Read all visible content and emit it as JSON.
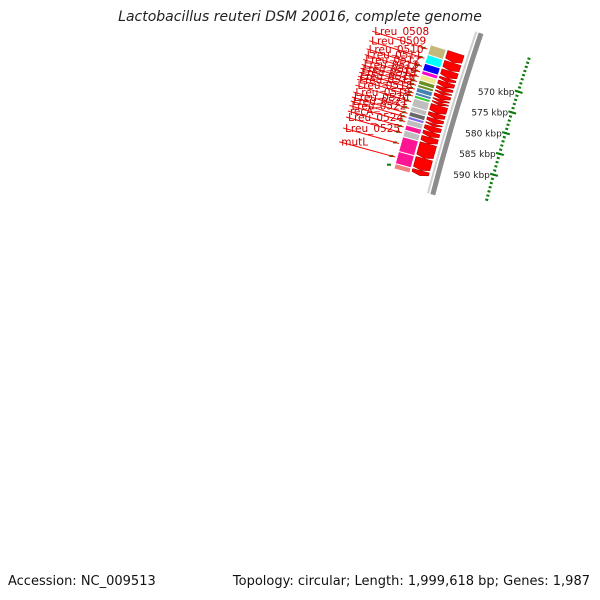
{
  "title": "Lactobacillus reuteri DSM 20016, complete genome",
  "accession_text": "Accession: NC_009513",
  "summary_text": "Topology: circular; Length: 1,999,618 bp; Genes: 1,987",
  "scale_labels": [
    {
      "text": "570 kbp",
      "kbp": 570
    },
    {
      "text": "575 kbp",
      "kbp": 575
    },
    {
      "text": "580 kbp",
      "kbp": 580
    },
    {
      "text": "585 kbp",
      "kbp": 585
    },
    {
      "text": "590 kbp",
      "kbp": 590
    }
  ],
  "colors": {
    "backbone": "#8c8c8c",
    "cds": "#ff0000",
    "label_line": "#ff0000",
    "label_text": "#cc0000",
    "scale_tick": "#0a7a0a"
  },
  "genes": [
    {
      "name": "Lreu_0508",
      "start_kbp": 566.0,
      "end_kbp": 568.2,
      "color": "#c4b87a"
    },
    {
      "name": "Lreu_0509",
      "start_kbp": 568.3,
      "end_kbp": 570.2,
      "color": "#00ffff"
    },
    {
      "name": "Lreu_0510",
      "start_kbp": 570.3,
      "end_kbp": 571.9,
      "color": "#0000ff"
    },
    {
      "name": "Lreu_0511",
      "start_kbp": 572.0,
      "end_kbp": 572.8,
      "color": "#ff00cc"
    },
    {
      "name": "Lreu_0512",
      "start_kbp": 572.9,
      "end_kbp": 574.1,
      "color": "#f0e68c"
    },
    {
      "name": "Lreu_0513",
      "start_kbp": 574.2,
      "end_kbp": 575.1,
      "color": "#6b8e23"
    },
    {
      "name": "Lreu_0514",
      "start_kbp": 575.2,
      "end_kbp": 575.8,
      "color": "#6b8e23"
    },
    {
      "name": "Lreu_0515",
      "start_kbp": 575.9,
      "end_kbp": 576.9,
      "color": "#4682b4"
    },
    {
      "name": "Lreu_0516",
      "start_kbp": 577.0,
      "end_kbp": 577.6,
      "color": "#4682b4"
    },
    {
      "name": "Lreu_0517",
      "start_kbp": 577.7,
      "end_kbp": 578.3,
      "color": "#33cc33"
    },
    {
      "name": "Lreu_0518",
      "start_kbp": 578.4,
      "end_kbp": 580.2,
      "color": "#bebebe"
    },
    {
      "name": "Lreu_0519",
      "start_kbp": 580.3,
      "end_kbp": 581.4,
      "color": "#bebebe"
    },
    {
      "name": "Lreu_0520",
      "start_kbp": 581.5,
      "end_kbp": 582.5,
      "color": "#696969"
    },
    {
      "name": "Lreu_0521",
      "start_kbp": 582.6,
      "end_kbp": 583.2,
      "color": "#7b68ee"
    },
    {
      "name": "Lreu_0522",
      "start_kbp": 583.3,
      "end_kbp": 584.5,
      "color": "#bebebe"
    },
    {
      "name": "recA",
      "start_kbp": 584.6,
      "end_kbp": 585.7,
      "color": "#ff1493"
    },
    {
      "name": "Lreu_0524",
      "start_kbp": 585.8,
      "end_kbp": 587.2,
      "color": "#bebebe"
    },
    {
      "name": "Lreu_0525",
      "start_kbp": 587.3,
      "end_kbp": 590.6,
      "color": "#ff1493"
    },
    {
      "name": "mutL",
      "start_kbp": 590.7,
      "end_kbp": 593.4,
      "color": "#ff1493"
    },
    {
      "name": "",
      "start_kbp": 593.5,
      "end_kbp": 594.6,
      "color": "#f08080"
    }
  ]
}
